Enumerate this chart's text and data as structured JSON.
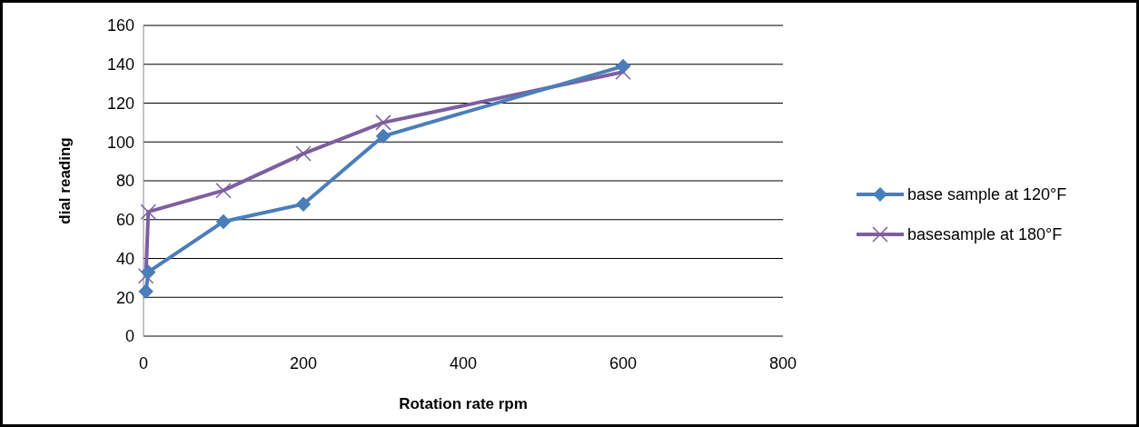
{
  "chart_data": {
    "type": "line",
    "xlabel": "Rotation rate rpm",
    "ylabel": "dial reading",
    "xlim": [
      0,
      800
    ],
    "xticks": [
      0,
      200,
      400,
      600,
      800
    ],
    "ylim": [
      0,
      160
    ],
    "yticks": [
      0,
      20,
      40,
      60,
      80,
      100,
      120,
      140,
      160
    ],
    "grid": "y",
    "legend": "right",
    "series": [
      {
        "name": "base sample at 120°F",
        "color": "#4a7ebb",
        "marker": "diamond",
        "x": [
          3,
          6,
          100,
          200,
          300,
          600
        ],
        "values": [
          23,
          33,
          59,
          68,
          103,
          139
        ]
      },
      {
        "name": "basesample at 180°F",
        "color": "#7d5fa0",
        "marker": "cross",
        "x": [
          3,
          6,
          100,
          200,
          300,
          600
        ],
        "values": [
          31,
          64,
          75,
          94,
          110,
          136
        ]
      }
    ]
  }
}
